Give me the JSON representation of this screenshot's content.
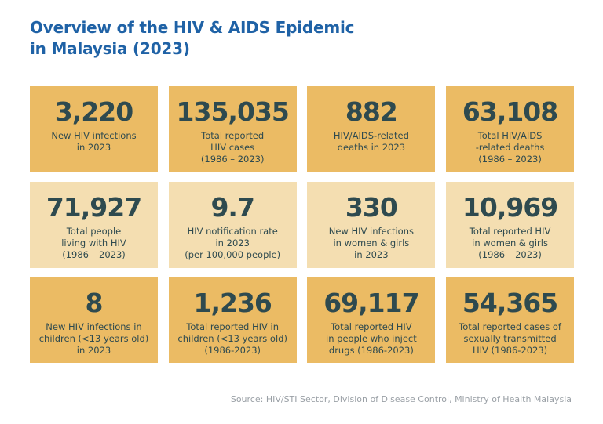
{
  "title_lines": [
    "Overview of the HIV & AIDS Epidemic",
    "in Malaysia (2023)"
  ],
  "colors": {
    "title": "#1f62a6",
    "card_dark": "#ebbb64",
    "card_light": "#f4deb1",
    "text": "#2e4a4f"
  },
  "cards": [
    {
      "value": "3,220",
      "label": "New HIV infections\nin 2023",
      "shade": "dark"
    },
    {
      "value": "135,035",
      "label": "Total reported\nHIV cases\n(1986 – 2023)",
      "shade": "dark"
    },
    {
      "value": "882",
      "label": "HIV/AIDS-related\ndeaths in 2023",
      "shade": "dark"
    },
    {
      "value": "63,108",
      "label": "Total HIV/AIDS\n-related deaths\n(1986 – 2023)",
      "shade": "dark"
    },
    {
      "value": "71,927",
      "label": "Total people\nliving with HIV\n(1986 – 2023)",
      "shade": "light"
    },
    {
      "value": "9.7",
      "label": "HIV notification rate\nin 2023\n(per 100,000 people)",
      "shade": "light"
    },
    {
      "value": "330",
      "label": "New HIV infections\nin women & girls\nin 2023",
      "shade": "light"
    },
    {
      "value": "10,969",
      "label": "Total reported HIV\nin women & girls\n(1986 – 2023)",
      "shade": "light"
    },
    {
      "value": "8",
      "label": "New HIV infections in\nchildren (<13 years old)\nin 2023",
      "shade": "dark"
    },
    {
      "value": "1,236",
      "label": "Total reported HIV in\nchildren (<13 years old)\n(1986-2023)",
      "shade": "dark"
    },
    {
      "value": "69,117",
      "label": "Total reported HIV\nin people who inject\ndrugs (1986-2023)",
      "shade": "dark"
    },
    {
      "value": "54,365",
      "label": "Total reported cases of\nsexually transmitted\nHIV (1986-2023)",
      "shade": "dark"
    }
  ],
  "source": "Source: HIV/STI Sector, Division of Disease Control, Ministry of Health Malaysia"
}
